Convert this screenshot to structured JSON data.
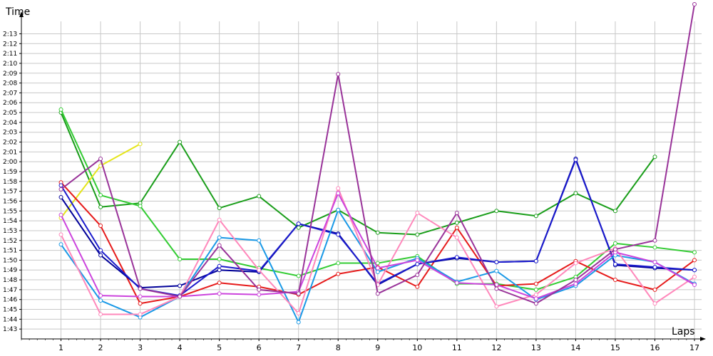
{
  "chart_data": {
    "type": "line",
    "xlabel": "Laps",
    "ylabel": "Time",
    "x": [
      1,
      2,
      3,
      4,
      5,
      6,
      7,
      8,
      9,
      10,
      11,
      12,
      13,
      14,
      15,
      16,
      17
    ],
    "xlim": [
      0,
      17
    ],
    "ylim": [
      "1:42",
      "2:16"
    ],
    "y_ticks": [
      "1:43",
      "1:44",
      "1:45",
      "1:46",
      "1:47",
      "1:48",
      "1:49",
      "1:50",
      "1:51",
      "1:52",
      "1:53",
      "1:54",
      "1:55",
      "1:56",
      "1:57",
      "1:58",
      "1:59",
      "2:00",
      "2:01",
      "2:02",
      "2:03",
      "2:04",
      "2:05",
      "2:06",
      "2:07",
      "2:08",
      "2:09",
      "2:10",
      "2:11",
      "2:12",
      "2:13"
    ],
    "grid": true,
    "series": [
      {
        "color": "#1a9e1a",
        "values": [
          "2:05.0",
          "1:55.4",
          "1:55.8",
          "2:02.0",
          "1:55.3",
          "1:56.5",
          "1:53.3",
          "1:55.1",
          "1:52.8",
          "1:52.6",
          "1:53.8",
          "1:55.0",
          "1:54.5",
          "1:56.8",
          "1:55.0",
          "2:00.5",
          null
        ]
      },
      {
        "color": "#33cc33",
        "values": [
          "2:05.3",
          "1:56.6",
          "1:55.5",
          "1:50.1",
          "1:50.1",
          "1:49.2",
          "1:48.4",
          "1:49.7",
          "1:49.7",
          "1:50.4",
          "1:47.6",
          "1:47.6",
          "1:47.0",
          "1:48.3",
          "1:51.7",
          "1:51.3",
          "1:50.8"
        ]
      },
      {
        "color": "#e5e51a",
        "values": [
          "1:54.3",
          "1:59.6",
          "2:01.8",
          null,
          null,
          null,
          null,
          null,
          null,
          null,
          null,
          null,
          null,
          null,
          null,
          null,
          null
        ]
      },
      {
        "color": "#e61a1a",
        "values": [
          "1:57.9",
          "1:53.5",
          "1:45.6",
          "1:46.3",
          "1:47.7",
          "1:47.3",
          "1:46.5",
          "1:48.6",
          "1:49.3",
          "1:47.3",
          "1:53.3",
          "1:47.4",
          "1:47.6",
          "1:49.9",
          "1:48.0",
          "1:47.0",
          "1:50.0"
        ]
      },
      {
        "color": "#000099",
        "values": [
          "1:56.4",
          "1:50.5",
          "1:47.2",
          "1:47.4",
          "1:49.0",
          "1:48.8",
          "1:53.7",
          "1:52.7",
          "1:47.5",
          "1:49.6",
          "1:50.2",
          "1:49.8",
          "1:49.9",
          "2:00.3",
          "1:49.5",
          "1:49.2",
          "1:49.0"
        ]
      },
      {
        "color": "#1a1acc",
        "values": [
          "1:57.6",
          "1:51.0",
          "1:47.1",
          "1:46.4",
          "1:49.4",
          "1:48.9",
          "1:53.7",
          "1:52.6",
          "1:47.6",
          "1:49.6",
          "1:50.3",
          "1:49.8",
          "1:49.9",
          "2:00.2",
          "1:49.6",
          "1:49.3",
          "1:49.0"
        ]
      },
      {
        "color": "#1a99e6",
        "values": [
          "1:51.6",
          "1:45.9",
          "1:44.2",
          "1:46.3",
          "1:52.3",
          "1:52.0",
          "1:43.7",
          "1:55.1",
          "1:48.8",
          "1:50.2",
          "1:47.8",
          "1:48.9",
          "1:46.0",
          "1:47.4",
          "1:50.5",
          "1:49.8",
          "1:47.6"
        ]
      },
      {
        "color": "#ff88bb",
        "values": [
          "1:52.6",
          "1:44.5",
          "1:44.5",
          "1:46.3",
          "1:54.1",
          "1:49.0",
          "1:44.6",
          "1:57.3",
          "1:47.5",
          "1:54.8",
          "1:52.3",
          "1:45.3",
          "1:46.5",
          "1:49.7",
          "1:51.2",
          "1:45.6",
          "1:48.3"
        ]
      },
      {
        "color": "#cc44dd",
        "values": [
          "1:54.6",
          "1:46.4",
          "1:46.3",
          "1:46.3",
          "1:46.6",
          "1:46.5",
          "1:46.8",
          "1:56.8",
          "1:49.2",
          "1:50.0",
          "1:47.7",
          "1:47.5",
          "1:46.1",
          "1:47.6",
          "1:50.8",
          "1:49.8",
          "1:47.5"
        ]
      },
      {
        "color": "#993399",
        "values": [
          "1:57.2",
          "2:00.3",
          "1:47.1",
          "1:46.3",
          "1:51.5",
          "1:47.0",
          "1:46.6",
          "2:08.9",
          "1:46.6",
          "1:48.5",
          "1:54.8",
          "1:47.1",
          "1:45.6",
          "1:48.0",
          "1:51.1",
          "1:52.0",
          "2:16.0"
        ]
      }
    ]
  }
}
